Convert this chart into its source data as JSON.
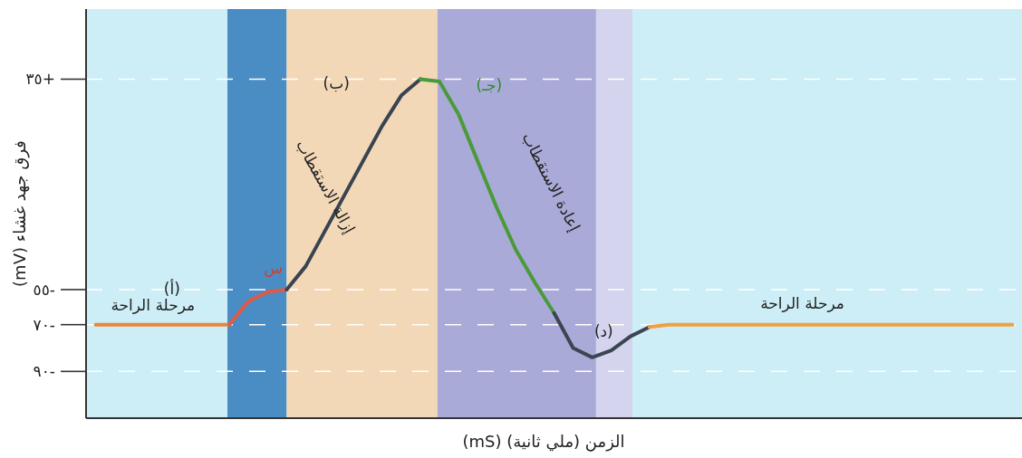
{
  "chart_data": {
    "type": "line",
    "xlabel": "الزمن (ملي ثانية) (mS)",
    "ylabel": "فرق جهد غشاء (mV)",
    "categories": [
      null,
      null,
      null,
      null,
      null,
      null,
      null,
      null,
      null,
      null,
      null,
      null,
      null,
      null,
      null,
      null,
      null,
      null,
      null,
      null,
      null,
      null,
      null,
      null,
      null,
      null,
      null,
      null,
      null,
      null,
      null,
      null,
      null,
      null,
      null,
      null,
      null,
      null,
      null,
      null,
      null,
      null,
      null,
      null,
      null,
      null,
      null,
      null,
      null
    ],
    "series": [
      {
        "color": "#e8883a",
        "values": [
          -70,
          -70,
          -70,
          -70,
          -70,
          -70,
          -70,
          -70,
          null,
          null,
          null,
          null,
          null,
          null,
          null,
          null,
          null,
          null,
          null,
          null,
          null,
          null,
          null,
          null,
          null,
          null,
          null,
          null,
          null,
          null,
          null,
          null,
          null,
          null,
          null,
          null,
          null,
          null,
          null,
          null,
          null,
          null,
          null,
          null,
          null,
          null,
          null,
          null,
          null
        ]
      },
      {
        "color": "#e05a4a",
        "values": [
          null,
          null,
          null,
          null,
          null,
          null,
          null,
          -70,
          -60,
          -56,
          -55,
          null,
          null,
          null,
          null,
          null,
          null,
          null,
          null,
          null,
          null,
          null,
          null,
          null,
          null,
          null,
          null,
          null,
          null,
          null,
          null,
          null,
          null,
          null,
          null,
          null,
          null,
          null,
          null,
          null,
          null,
          null,
          null,
          null,
          null,
          null,
          null,
          null,
          null
        ]
      },
      {
        "color": "#3a4450",
        "values": [
          null,
          null,
          null,
          null,
          null,
          null,
          null,
          null,
          null,
          null,
          -55,
          -45,
          -30,
          -15,
          0,
          15,
          28,
          35,
          null,
          null,
          null,
          null,
          null,
          null,
          null,
          null,
          null,
          null,
          null,
          null,
          null,
          null,
          null,
          null,
          null,
          null,
          null,
          null,
          null,
          null,
          null,
          null,
          null,
          null,
          null,
          null,
          null,
          null,
          null
        ]
      },
      {
        "color": "#4a9a3a",
        "values": [
          null,
          null,
          null,
          null,
          null,
          null,
          null,
          null,
          null,
          null,
          null,
          null,
          null,
          null,
          null,
          null,
          null,
          35,
          34,
          20,
          0,
          -20,
          -38,
          -52,
          -65,
          null,
          null,
          null,
          null,
          null,
          null,
          null,
          null,
          null,
          null,
          null,
          null,
          null,
          null,
          null,
          null,
          null,
          null,
          null,
          null,
          null,
          null,
          null,
          null
        ]
      },
      {
        "color": "#3c4652",
        "values": [
          null,
          null,
          null,
          null,
          null,
          null,
          null,
          null,
          null,
          null,
          null,
          null,
          null,
          null,
          null,
          null,
          null,
          null,
          null,
          null,
          null,
          null,
          null,
          null,
          -65,
          -80,
          -84,
          -81,
          -75,
          -71,
          null,
          null,
          null,
          null,
          null,
          null,
          null,
          null,
          null,
          null,
          null,
          null,
          null,
          null,
          null,
          null,
          null,
          null,
          null
        ]
      },
      {
        "color": "#f0a040",
        "values": [
          null,
          null,
          null,
          null,
          null,
          null,
          null,
          null,
          null,
          null,
          null,
          null,
          null,
          null,
          null,
          null,
          null,
          null,
          null,
          null,
          null,
          null,
          null,
          null,
          null,
          null,
          null,
          null,
          null,
          -71,
          -70,
          -70,
          -70,
          -70,
          -70,
          -70,
          -70,
          -70,
          -70,
          -70,
          -70,
          -70,
          -70,
          -70,
          -70,
          -70,
          -70,
          -70,
          -70
        ]
      }
    ],
    "ylim": [
      -110,
      65
    ],
    "yticks": [
      {
        "value": 35,
        "label": "٣٥+"
      },
      {
        "value": -55,
        "label": "٥٥-"
      },
      {
        "value": -70,
        "label": "٧٠-"
      },
      {
        "value": -90,
        "label": "٩٠-"
      }
    ],
    "tick_labels": "y",
    "grid": "y",
    "annotations": [
      "(أ)",
      "مرحلة الراحة",
      "س",
      "(ب)",
      "إزالة الاستقطاب",
      "(جـ)",
      "إعادة الاستقطاب",
      "(د)",
      "مرحلة الراحة"
    ]
  }
}
